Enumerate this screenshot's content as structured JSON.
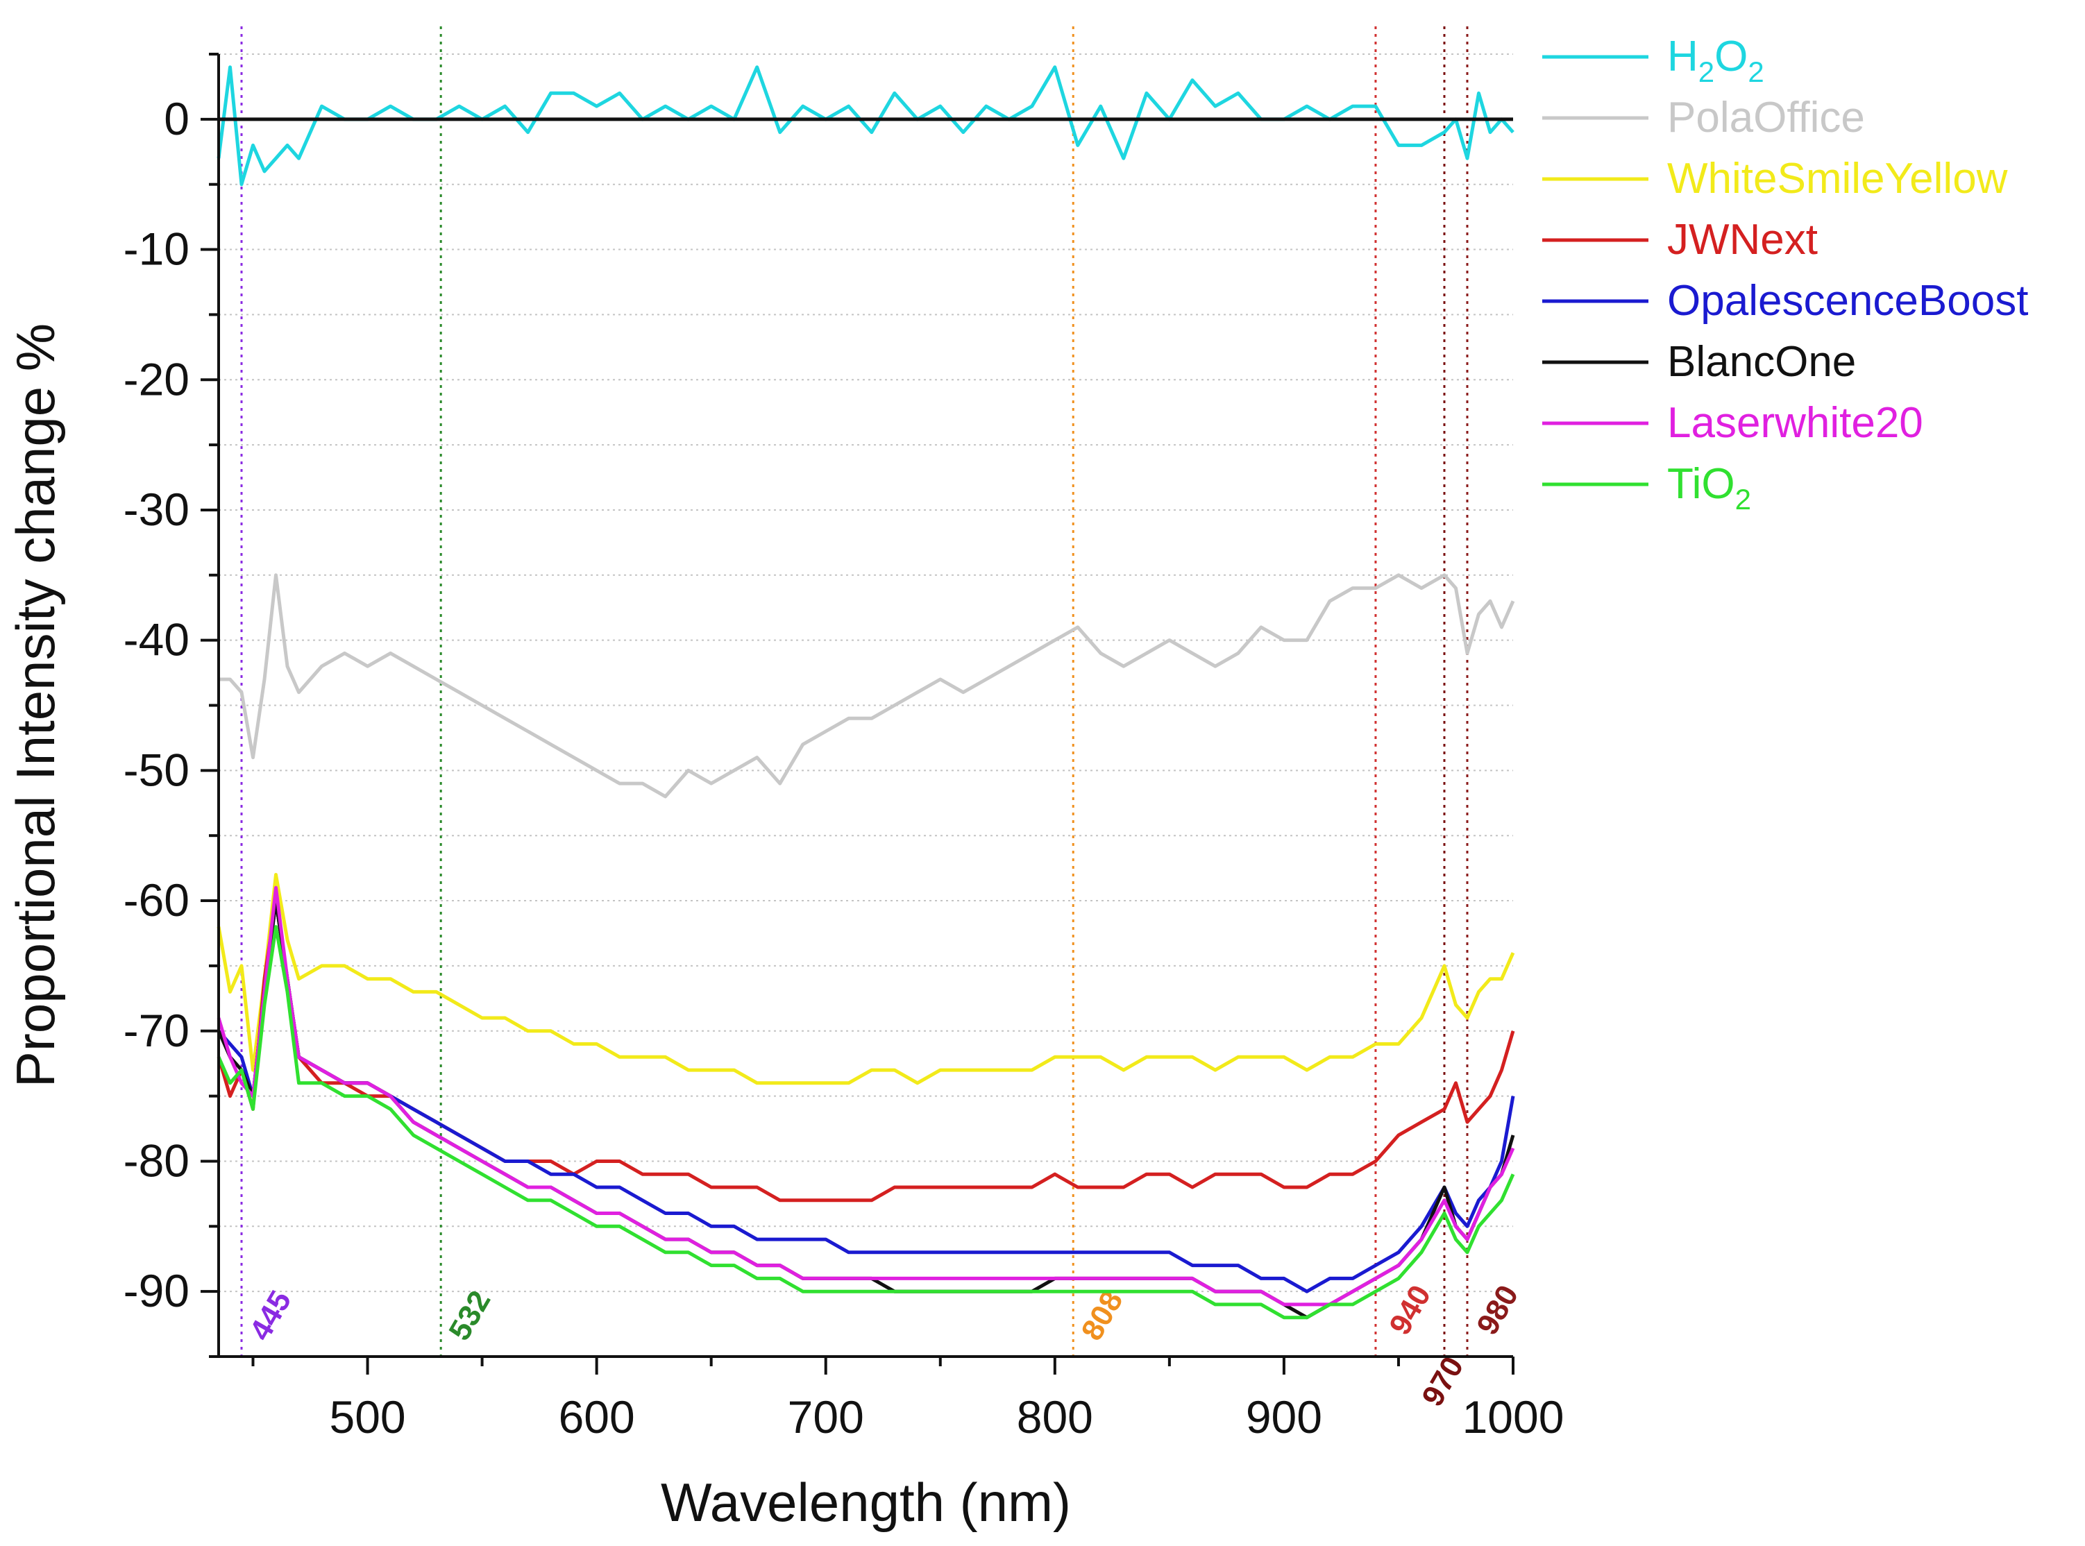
{
  "chart_data": {
    "type": "line",
    "title": "",
    "xlabel": "Wavelength (nm)",
    "ylabel": "Proportional Intensity change %",
    "xlim": [
      435,
      1000
    ],
    "ylim": [
      -95,
      5
    ],
    "xticks": [
      500,
      600,
      700,
      800,
      900,
      1000
    ],
    "yticks": [
      0,
      -10,
      -20,
      -30,
      -40,
      -50,
      -60,
      -70,
      -80,
      -90
    ],
    "xtick_labels": [
      "500",
      "600",
      "700",
      "800",
      "900",
      "1000"
    ],
    "ytick_labels": [
      "0",
      "-10",
      "-20",
      "-30",
      "-40",
      "-50",
      "-60",
      "-70",
      "-80",
      "-90"
    ],
    "grid": "horizontal dotted",
    "legend_position": "right",
    "reference_lines": [
      {
        "x": 445,
        "label": "445",
        "color": "#8a2be2"
      },
      {
        "x": 532,
        "label": "532",
        "color": "#2a8a2a"
      },
      {
        "x": 808,
        "label": "808",
        "color": "#f0901e"
      },
      {
        "x": 940,
        "label": "940",
        "color": "#d03030"
      },
      {
        "x": 970,
        "label": "970",
        "color": "#7a1010"
      },
      {
        "x": 980,
        "label": "980",
        "color": "#8a1a1a"
      }
    ],
    "x": [
      435,
      440,
      445,
      450,
      455,
      460,
      465,
      470,
      480,
      490,
      500,
      510,
      520,
      530,
      540,
      550,
      560,
      570,
      580,
      590,
      600,
      610,
      620,
      630,
      640,
      650,
      660,
      670,
      680,
      690,
      700,
      710,
      720,
      730,
      740,
      750,
      760,
      770,
      780,
      790,
      800,
      810,
      820,
      830,
      840,
      850,
      860,
      870,
      880,
      890,
      900,
      910,
      920,
      930,
      940,
      950,
      960,
      970,
      975,
      980,
      985,
      990,
      995,
      1000
    ],
    "series": [
      {
        "name": "H2O2",
        "label_main": "H",
        "label_sub1": "2",
        "label_mid": "O",
        "label_sub2": "2",
        "color": "#1ed6e0",
        "values": [
          -3,
          4,
          -5,
          -2,
          -4,
          -3,
          -2,
          -3,
          1,
          0,
          0,
          1,
          0,
          0,
          1,
          0,
          1,
          -1,
          2,
          2,
          1,
          2,
          0,
          1,
          0,
          1,
          0,
          4,
          -1,
          1,
          0,
          1,
          -1,
          2,
          0,
          1,
          -1,
          1,
          0,
          1,
          4,
          -2,
          1,
          -3,
          2,
          0,
          3,
          1,
          2,
          0,
          0,
          1,
          0,
          1,
          1,
          -2,
          -2,
          -1,
          0,
          -3,
          2,
          -1,
          0,
          -1
        ]
      },
      {
        "name": "PolaOffice",
        "color": "#c8c8c8",
        "values": [
          -43,
          -43,
          -44,
          -49,
          -43,
          -35,
          -42,
          -44,
          -42,
          -41,
          -42,
          -41,
          -42,
          -43,
          -44,
          -45,
          -46,
          -47,
          -48,
          -49,
          -50,
          -51,
          -51,
          -52,
          -50,
          -51,
          -50,
          -49,
          -51,
          -48,
          -47,
          -46,
          -46,
          -45,
          -44,
          -43,
          -44,
          -43,
          -42,
          -41,
          -40,
          -39,
          -41,
          -42,
          -41,
          -40,
          -41,
          -42,
          -41,
          -39,
          -40,
          -40,
          -37,
          -36,
          -36,
          -35,
          -36,
          -35,
          -36,
          -41,
          -38,
          -37,
          -39,
          -37
        ]
      },
      {
        "name": "WhiteSmileYellow",
        "color": "#f2ea1a",
        "values": [
          -62,
          -67,
          -65,
          -73,
          -66,
          -58,
          -63,
          -66,
          -65,
          -65,
          -66,
          -66,
          -67,
          -67,
          -68,
          -69,
          -69,
          -70,
          -70,
          -71,
          -71,
          -72,
          -72,
          -72,
          -73,
          -73,
          -73,
          -74,
          -74,
          -74,
          -74,
          -74,
          -73,
          -73,
          -74,
          -73,
          -73,
          -73,
          -73,
          -73,
          -72,
          -72,
          -72,
          -73,
          -72,
          -72,
          -72,
          -73,
          -72,
          -72,
          -72,
          -73,
          -72,
          -72,
          -71,
          -71,
          -69,
          -65,
          -68,
          -69,
          -67,
          -66,
          -66,
          -64
        ]
      },
      {
        "name": "JWNext",
        "color": "#d42020",
        "values": [
          -72,
          -75,
          -73,
          -76,
          -66,
          -60,
          -66,
          -72,
          -74,
          -74,
          -75,
          -75,
          -76,
          -77,
          -78,
          -79,
          -80,
          -80,
          -80,
          -81,
          -80,
          -80,
          -81,
          -81,
          -81,
          -82,
          -82,
          -82,
          -83,
          -83,
          -83,
          -83,
          -83,
          -82,
          -82,
          -82,
          -82,
          -82,
          -82,
          -82,
          -81,
          -82,
          -82,
          -82,
          -81,
          -81,
          -82,
          -81,
          -81,
          -81,
          -82,
          -82,
          -81,
          -81,
          -80,
          -78,
          -77,
          -76,
          -74,
          -77,
          -76,
          -75,
          -73,
          -70
        ]
      },
      {
        "name": "OpalescenceBoost",
        "color": "#1a1ad0",
        "values": [
          -70,
          -71,
          -72,
          -75,
          -67,
          -60,
          -66,
          -72,
          -73,
          -74,
          -74,
          -75,
          -76,
          -77,
          -78,
          -79,
          -80,
          -80,
          -81,
          -81,
          -82,
          -82,
          -83,
          -84,
          -84,
          -85,
          -85,
          -86,
          -86,
          -86,
          -86,
          -87,
          -87,
          -87,
          -87,
          -87,
          -87,
          -87,
          -87,
          -87,
          -87,
          -87,
          -87,
          -87,
          -87,
          -87,
          -88,
          -88,
          -88,
          -89,
          -89,
          -90,
          -89,
          -89,
          -88,
          -87,
          -85,
          -82,
          -84,
          -85,
          -83,
          -82,
          -80,
          -75
        ]
      },
      {
        "name": "BlancOne",
        "color": "#111111",
        "values": [
          -70,
          -72,
          -73,
          -75,
          -67,
          -60,
          -66,
          -72,
          -73,
          -74,
          -74,
          -75,
          -77,
          -78,
          -79,
          -80,
          -81,
          -82,
          -82,
          -83,
          -84,
          -84,
          -85,
          -86,
          -86,
          -87,
          -87,
          -88,
          -88,
          -89,
          -89,
          -89,
          -89,
          -90,
          -90,
          -90,
          -90,
          -90,
          -90,
          -90,
          -89,
          -89,
          -89,
          -89,
          -89,
          -89,
          -89,
          -90,
          -90,
          -90,
          -91,
          -92,
          -91,
          -90,
          -89,
          -88,
          -86,
          -82,
          -85,
          -86,
          -84,
          -82,
          -81,
          -78
        ]
      },
      {
        "name": "Laserwhite20",
        "color": "#e020e0",
        "values": [
          -69,
          -72,
          -74,
          -75,
          -67,
          -59,
          -66,
          -72,
          -73,
          -74,
          -74,
          -75,
          -77,
          -78,
          -79,
          -80,
          -81,
          -82,
          -82,
          -83,
          -84,
          -84,
          -85,
          -86,
          -86,
          -87,
          -87,
          -88,
          -88,
          -89,
          -89,
          -89,
          -89,
          -89,
          -89,
          -89,
          -89,
          -89,
          -89,
          -89,
          -89,
          -89,
          -89,
          -89,
          -89,
          -89,
          -89,
          -90,
          -90,
          -90,
          -91,
          -91,
          -91,
          -90,
          -89,
          -88,
          -86,
          -83,
          -85,
          -86,
          -84,
          -82,
          -81,
          -79
        ]
      },
      {
        "name": "TiO2",
        "label_main": "TiO",
        "label_sub1": "2",
        "color": "#30e030",
        "values": [
          -72,
          -74,
          -73,
          -76,
          -68,
          -62,
          -67,
          -74,
          -74,
          -75,
          -75,
          -76,
          -78,
          -79,
          -80,
          -81,
          -82,
          -83,
          -83,
          -84,
          -85,
          -85,
          -86,
          -87,
          -87,
          -88,
          -88,
          -89,
          -89,
          -90,
          -90,
          -90,
          -90,
          -90,
          -90,
          -90,
          -90,
          -90,
          -90,
          -90,
          -90,
          -90,
          -90,
          -90,
          -90,
          -90,
          -90,
          -91,
          -91,
          -91,
          -92,
          -92,
          -91,
          -91,
          -90,
          -89,
          -87,
          -84,
          -86,
          -87,
          -85,
          -84,
          -83,
          -81
        ]
      }
    ]
  }
}
